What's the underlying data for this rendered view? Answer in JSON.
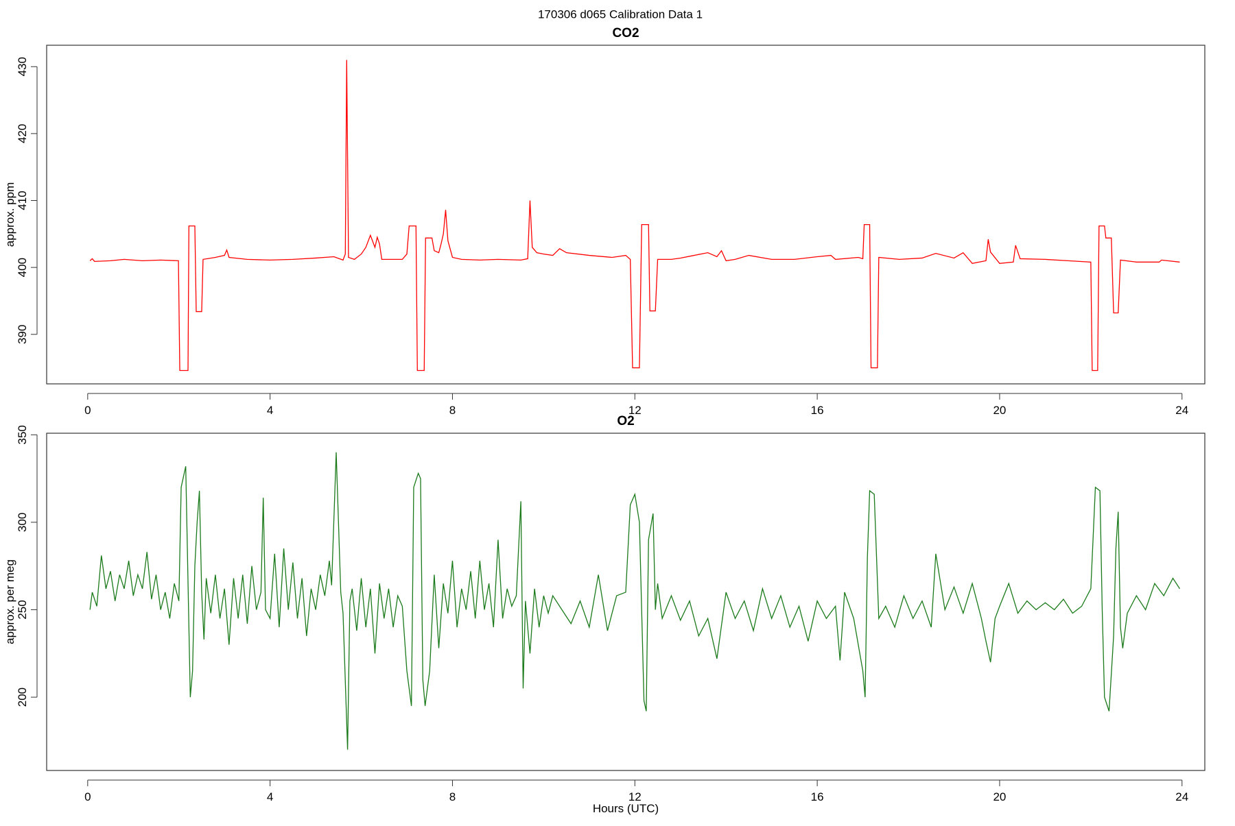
{
  "title": "170306   d065   Calibration Data 1",
  "chart_data": [
    {
      "type": "line",
      "title": "CO2",
      "ylabel": "approx. ppm",
      "color": "#ff0000",
      "xlim": [
        -0.9,
        24.5
      ],
      "xticks": [
        0,
        4,
        8,
        12,
        16,
        20,
        24
      ],
      "ylim": [
        382.6,
        433.2
      ],
      "yticks": [
        390,
        400,
        410,
        420,
        430
      ],
      "x": [
        0.05,
        0.1,
        0.15,
        0.5,
        0.8,
        1.2,
        1.6,
        1.99,
        2.02,
        2.2,
        2.22,
        2.35,
        2.38,
        2.5,
        2.53,
        2.8,
        3.0,
        3.05,
        3.1,
        3.5,
        4.0,
        4.5,
        5.0,
        5.4,
        5.6,
        5.65,
        5.68,
        5.72,
        5.85,
        6.0,
        6.1,
        6.2,
        6.3,
        6.35,
        6.4,
        6.45,
        6.9,
        7.0,
        7.05,
        7.2,
        7.23,
        7.38,
        7.41,
        7.55,
        7.6,
        7.7,
        7.75,
        7.8,
        7.85,
        7.9,
        8.0,
        8.2,
        8.6,
        9.0,
        9.5,
        9.65,
        9.7,
        9.75,
        9.85,
        10.0,
        10.2,
        10.35,
        10.5,
        11.0,
        11.5,
        11.8,
        11.9,
        11.95,
        12.1,
        12.15,
        12.3,
        12.33,
        12.45,
        12.5,
        12.8,
        13.0,
        13.3,
        13.6,
        13.8,
        13.9,
        14.0,
        14.2,
        14.5,
        15.0,
        15.5,
        16.0,
        16.3,
        16.4,
        16.9,
        17.0,
        17.03,
        17.15,
        17.18,
        17.32,
        17.35,
        17.8,
        18.3,
        18.6,
        19.0,
        19.2,
        19.4,
        19.7,
        19.75,
        19.8,
        20.0,
        20.3,
        20.35,
        20.45,
        21.0,
        21.5,
        22.0,
        22.03,
        22.15,
        22.18,
        22.3,
        22.33,
        22.45,
        22.5,
        22.6,
        22.65,
        23.0,
        23.5,
        23.55,
        23.95
      ],
      "values": [
        401,
        401.3,
        400.9,
        401,
        401.2,
        401,
        401.1,
        401,
        384.6,
        384.6,
        406.2,
        406.2,
        393.4,
        393.4,
        401.2,
        401.5,
        401.8,
        402.6,
        401.5,
        401.2,
        401.1,
        401.2,
        401.4,
        401.6,
        401.1,
        402,
        431,
        401.5,
        401.2,
        402,
        403,
        404.8,
        403,
        404.5,
        403.5,
        401.2,
        401.2,
        402,
        406.2,
        406.2,
        384.6,
        384.6,
        404.4,
        404.4,
        402.5,
        402.2,
        403.5,
        405,
        408.6,
        404,
        401.5,
        401.2,
        401.1,
        401.2,
        401.1,
        401.3,
        410,
        403,
        402.2,
        402,
        401.8,
        402.8,
        402.2,
        401.8,
        401.5,
        401.8,
        401.2,
        385,
        385,
        406.4,
        406.4,
        393.5,
        393.5,
        401.2,
        401.2,
        401.4,
        401.8,
        402.2,
        401.6,
        402.5,
        401,
        401.2,
        401.8,
        401.2,
        401.2,
        401.6,
        401.8,
        401.2,
        401.5,
        401.3,
        406.4,
        406.4,
        385,
        385,
        401.5,
        401.2,
        401.4,
        402.1,
        401.4,
        402.2,
        400.6,
        401,
        404.2,
        402.3,
        400.6,
        400.8,
        403.3,
        401.3,
        401.2,
        401,
        400.8,
        384.6,
        384.6,
        406.2,
        406.2,
        404.4,
        404.4,
        393.2,
        393.2,
        401.1,
        400.8,
        400.8,
        401.1,
        400.8
      ]
    },
    {
      "type": "line",
      "title": "O2",
      "ylabel": "approx. per meg",
      "xlabel": "Hours (UTC)",
      "color": "#1a7a1a",
      "xlim": [
        -0.9,
        24.5
      ],
      "xticks": [
        0,
        4,
        8,
        12,
        16,
        20,
        24
      ],
      "ylim": [
        158.1,
        350.9
      ],
      "yticks": [
        200,
        250,
        300,
        350
      ],
      "x": [
        0.05,
        0.1,
        0.2,
        0.3,
        0.4,
        0.5,
        0.6,
        0.7,
        0.8,
        0.9,
        1.0,
        1.1,
        1.2,
        1.3,
        1.4,
        1.5,
        1.6,
        1.7,
        1.8,
        1.9,
        2.0,
        2.05,
        2.15,
        2.25,
        2.3,
        2.35,
        2.4,
        2.45,
        2.5,
        2.55,
        2.6,
        2.7,
        2.8,
        2.9,
        3.0,
        3.1,
        3.2,
        3.3,
        3.4,
        3.5,
        3.6,
        3.7,
        3.8,
        3.85,
        3.9,
        4.0,
        4.1,
        4.2,
        4.3,
        4.4,
        4.5,
        4.6,
        4.7,
        4.8,
        4.9,
        5.0,
        5.1,
        5.2,
        5.3,
        5.35,
        5.45,
        5.5,
        5.55,
        5.6,
        5.7,
        5.75,
        5.8,
        5.9,
        6.0,
        6.1,
        6.2,
        6.3,
        6.4,
        6.5,
        6.6,
        6.7,
        6.8,
        6.9,
        7.0,
        7.1,
        7.15,
        7.25,
        7.3,
        7.35,
        7.4,
        7.5,
        7.6,
        7.7,
        7.8,
        7.9,
        8.0,
        8.1,
        8.2,
        8.3,
        8.4,
        8.5,
        8.6,
        8.7,
        8.8,
        8.9,
        9.0,
        9.1,
        9.2,
        9.3,
        9.4,
        9.5,
        9.55,
        9.6,
        9.7,
        9.8,
        9.9,
        10.0,
        10.1,
        10.2,
        10.4,
        10.6,
        10.8,
        11.0,
        11.2,
        11.4,
        11.6,
        11.8,
        11.9,
        12.0,
        12.1,
        12.2,
        12.25,
        12.3,
        12.4,
        12.45,
        12.5,
        12.6,
        12.8,
        13.0,
        13.2,
        13.4,
        13.6,
        13.8,
        14.0,
        14.2,
        14.4,
        14.6,
        14.8,
        15.0,
        15.2,
        15.4,
        15.6,
        15.8,
        16.0,
        16.2,
        16.4,
        16.5,
        16.6,
        16.8,
        17.0,
        17.05,
        17.1,
        17.15,
        17.25,
        17.35,
        17.5,
        17.7,
        17.9,
        18.1,
        18.3,
        18.5,
        18.6,
        18.8,
        19.0,
        19.2,
        19.4,
        19.6,
        19.7,
        19.8,
        19.9,
        20.0,
        20.2,
        20.4,
        20.6,
        20.8,
        21.0,
        21.2,
        21.4,
        21.6,
        21.8,
        22.0,
        22.1,
        22.2,
        22.25,
        22.3,
        22.4,
        22.5,
        22.55,
        22.6,
        22.65,
        22.7,
        22.8,
        23.0,
        23.2,
        23.4,
        23.6,
        23.8,
        23.95
      ],
      "values": [
        250,
        260,
        252,
        281,
        262,
        272,
        255,
        270,
        262,
        278,
        258,
        270,
        262,
        283,
        256,
        270,
        250,
        260,
        245,
        265,
        255,
        320,
        332,
        200,
        215,
        275,
        300,
        318,
        260,
        233,
        268,
        248,
        270,
        245,
        262,
        230,
        268,
        245,
        270,
        242,
        275,
        250,
        260,
        314,
        250,
        245,
        282,
        240,
        285,
        250,
        277,
        245,
        268,
        235,
        262,
        250,
        270,
        258,
        278,
        264,
        340,
        300,
        260,
        248,
        170,
        255,
        262,
        238,
        268,
        240,
        262,
        225,
        265,
        245,
        262,
        240,
        258,
        252,
        215,
        195,
        320,
        328,
        325,
        210,
        195,
        215,
        270,
        228,
        265,
        248,
        278,
        240,
        262,
        250,
        272,
        245,
        278,
        250,
        265,
        240,
        290,
        245,
        262,
        252,
        258,
        312,
        205,
        255,
        225,
        262,
        240,
        258,
        248,
        258,
        250,
        242,
        255,
        240,
        270,
        238,
        258,
        260,
        310,
        316,
        300,
        198,
        192,
        290,
        305,
        250,
        265,
        245,
        258,
        244,
        255,
        235,
        245,
        222,
        260,
        245,
        255,
        238,
        262,
        245,
        258,
        240,
        252,
        232,
        255,
        245,
        252,
        221,
        260,
        245,
        215,
        200,
        280,
        318,
        316,
        245,
        252,
        240,
        258,
        245,
        255,
        240,
        282,
        250,
        263,
        248,
        265,
        245,
        232,
        220,
        245,
        252,
        265,
        248,
        255,
        250,
        254,
        250,
        256,
        248,
        252,
        262,
        320,
        318,
        250,
        200,
        192,
        235,
        285,
        306,
        240,
        228,
        248,
        258,
        250,
        265,
        258,
        268,
        262
      ]
    }
  ]
}
